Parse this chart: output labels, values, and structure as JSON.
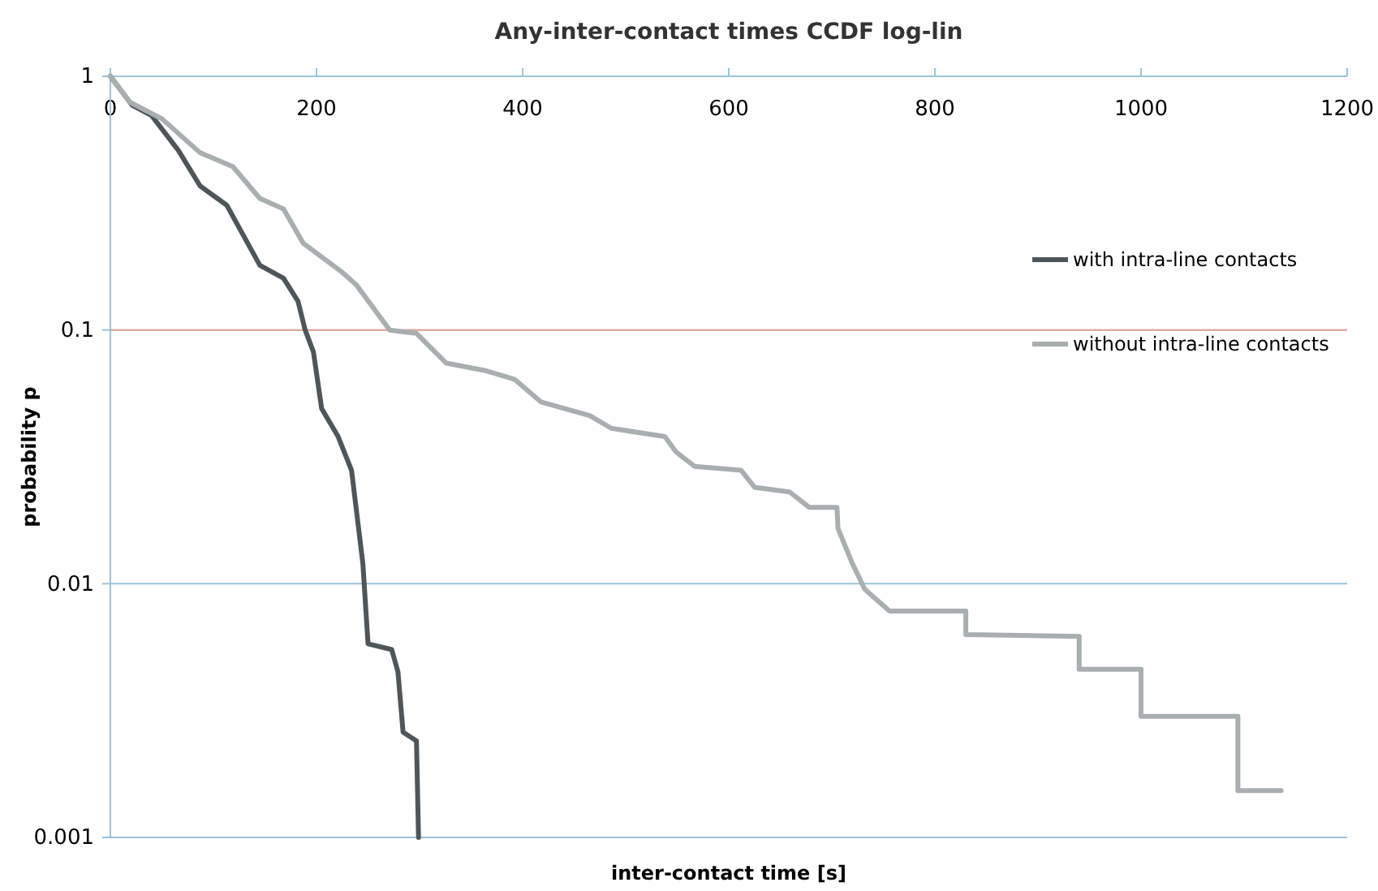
{
  "chart_data": {
    "type": "line",
    "title": "Any-inter-contact times CCDF log-lin",
    "xlabel": "inter-contact time [s]",
    "ylabel": "probability p",
    "log": "y",
    "grid": "y",
    "legend": "right",
    "marker": "none",
    "line_style": "solid",
    "xlim": [
      0,
      1200
    ],
    "xticks": [
      0,
      200,
      400,
      600,
      800,
      1000,
      1200
    ],
    "ylim": [
      0.001,
      1
    ],
    "yticks": [
      0.001,
      0.01,
      0.1,
      1
    ],
    "ref_lines": [
      {
        "axis": "y",
        "value": 0.1,
        "color": "#e8a494"
      }
    ],
    "series": [
      {
        "name": "with intra-line contacts",
        "color": "#4f5659",
        "x": [
          0,
          21,
          40,
          66,
          87,
          113,
          145,
          168,
          182,
          189,
          197,
          205,
          221,
          234,
          245,
          250,
          273,
          279,
          284,
          297,
          299
        ],
        "values": [
          1,
          0.77,
          0.7,
          0.51,
          0.37,
          0.31,
          0.18,
          0.16,
          0.13,
          0.1,
          0.082,
          0.049,
          0.038,
          0.028,
          0.012,
          0.0058,
          0.0055,
          0.0045,
          0.0026,
          0.0024,
          0.001
        ]
      },
      {
        "name": "without intra-line contacts",
        "color": "#a9aeb0",
        "x": [
          0,
          19,
          50,
          87,
          119,
          145,
          168,
          187,
          224,
          239,
          271,
          297,
          326,
          365,
          392,
          418,
          465,
          486,
          538,
          549,
          567,
          612,
          625,
          659,
          678,
          705,
          706,
          720,
          732,
          756,
          830,
          830,
          940,
          940,
          1000,
          1000,
          1094,
          1094,
          1136
        ],
        "values": [
          1,
          0.79,
          0.68,
          0.5,
          0.44,
          0.33,
          0.3,
          0.22,
          0.17,
          0.15,
          0.1,
          0.097,
          0.074,
          0.069,
          0.064,
          0.052,
          0.046,
          0.041,
          0.038,
          0.033,
          0.029,
          0.028,
          0.024,
          0.023,
          0.02,
          0.02,
          0.0165,
          0.012,
          0.0095,
          0.0078,
          0.0078,
          0.0063,
          0.0062,
          0.0046,
          0.0046,
          0.003,
          0.003,
          0.00153,
          0.00153
        ]
      }
    ]
  }
}
